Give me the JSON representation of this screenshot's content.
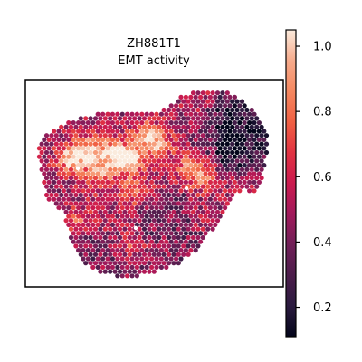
{
  "chart_data": {
    "type": "heatmap",
    "title_lines": [
      "ZH881T1",
      "EMT activity"
    ],
    "colorbar": {
      "min": 0.11,
      "max": 1.05,
      "ticks": [
        0.2,
        0.4,
        0.6,
        0.8,
        1.0
      ],
      "tick_labels": [
        "0.2",
        "0.4",
        "0.6",
        "0.8",
        "1.0"
      ],
      "colormap": "rocket",
      "colors": [
        "#03051a",
        "#2b1b3f",
        "#4c1d4b",
        "#701f57",
        "#a11a5b",
        "#cb1b4f",
        "#e13342",
        "#f06043",
        "#f58860",
        "#f6ab8c",
        "#faebdd"
      ]
    },
    "spatial_spots": {
      "description": "hexagonal spatial transcriptomics spots colored by EMT activity score",
      "value_range": [
        0.11,
        1.05
      ]
    },
    "frame": true
  }
}
